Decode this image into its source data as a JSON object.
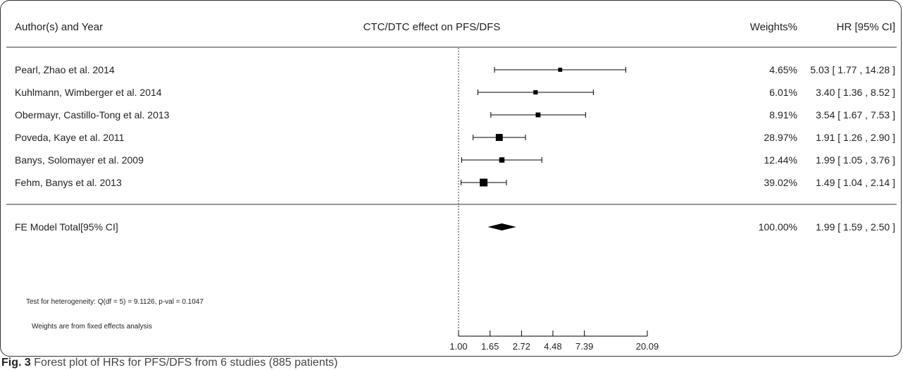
{
  "header": {
    "study_column": "Author(s) and Year",
    "title": "CTC/DTC effect on PFS/DFS",
    "weights_column": "Weights%",
    "hr_column": "HR [95% CI]"
  },
  "chart_data": {
    "type": "forest",
    "title": "CTC/DTC effect on PFS/DFS",
    "x_scale": "log",
    "x_ticks": [
      1.0,
      1.65,
      2.72,
      4.48,
      7.39,
      20.09
    ],
    "x_tick_labels": [
      "1.00",
      "1.65",
      "2.72",
      "4.48",
      "7.39",
      "20.09"
    ],
    "x_range": [
      1.0,
      20.09
    ],
    "reference_line": 1.0,
    "studies": [
      {
        "label": "Pearl, Zhao et al. 2014",
        "hr": 5.03,
        "lower": 1.77,
        "upper": 14.28,
        "weight": 4.65,
        "weight_text": "4.65%",
        "ci_text": "5.03 [ 1.77 , 14.28 ]"
      },
      {
        "label": "Kuhlmann, Wimberger et al. 2014",
        "hr": 3.4,
        "lower": 1.36,
        "upper": 8.52,
        "weight": 6.01,
        "weight_text": "6.01%",
        "ci_text": "3.40 [ 1.36 , 8.52 ]"
      },
      {
        "label": "Obermayr, Castillo-Tong et al. 2013",
        "hr": 3.54,
        "lower": 1.67,
        "upper": 7.53,
        "weight": 8.91,
        "weight_text": "8.91%",
        "ci_text": "3.54 [ 1.67 , 7.53 ]"
      },
      {
        "label": "Poveda, Kaye et al. 2011",
        "hr": 1.91,
        "lower": 1.26,
        "upper": 2.9,
        "weight": 28.97,
        "weight_text": "28.97%",
        "ci_text": "1.91 [ 1.26 , 2.90 ]"
      },
      {
        "label": "Banys, Solomayer et al. 2009",
        "hr": 1.99,
        "lower": 1.05,
        "upper": 3.76,
        "weight": 12.44,
        "weight_text": "12.44%",
        "ci_text": "1.99 [ 1.05 , 3.76 ]"
      },
      {
        "label": "Fehm, Banys et al. 2013",
        "hr": 1.49,
        "lower": 1.04,
        "upper": 2.14,
        "weight": 39.02,
        "weight_text": "39.02%",
        "ci_text": "1.49 [ 1.04 , 2.14 ]"
      }
    ],
    "summary": {
      "label": "FE Model Total[95% CI]",
      "hr": 1.99,
      "lower": 1.59,
      "upper": 2.5,
      "weight": 100.0,
      "weight_text": "100.00%",
      "ci_text": "1.99 [ 1.59 , 2.50 ]"
    },
    "notes": [
      "Test for heterogeneity: Q(df = 5) = 9.1126, p-val = 0.1047",
      "Weights are from fixed effects analysis"
    ]
  },
  "caption": {
    "label": "Fig. 3",
    "text": "Forest plot of HRs for PFS/DFS from 6 studies (885 patients)"
  },
  "colors": {
    "ink": "#000000",
    "text": "#222222",
    "frame": "#333333"
  }
}
